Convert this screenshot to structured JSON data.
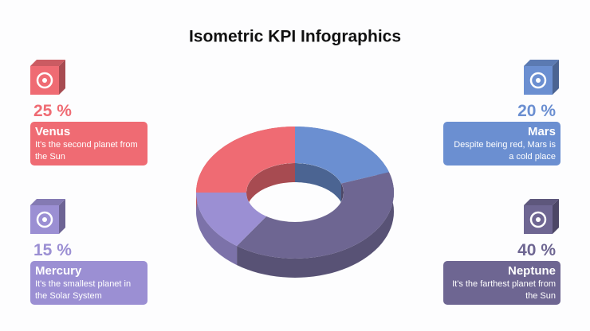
{
  "chart_data": {
    "type": "pie",
    "title": "Isometric KPI Infographics",
    "categories": [
      "Mars",
      "Neptune",
      "Mercury",
      "Venus"
    ],
    "values": [
      20,
      40,
      15,
      25
    ],
    "value_labels": [
      "20 %",
      "40 %",
      "15 %",
      "25 %"
    ],
    "descriptions": [
      "Despite being red, Mars is a cold place",
      "It's the farthest planet from the Sun",
      "It's the smallest planet in the Solar System",
      "It's the second planet from the Sun"
    ],
    "colors": [
      "#6b8fd1",
      "#6e6692",
      "#9b8fd3",
      "#ef6b73"
    ]
  }
}
